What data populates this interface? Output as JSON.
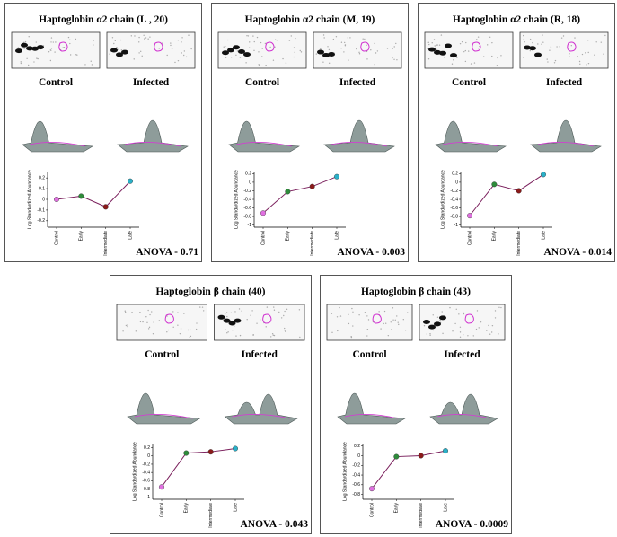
{
  "chart_data": [
    {
      "type": "line",
      "title": "Haptoglobin α2  chain (L , 20)",
      "image_labels": [
        "Control",
        "Infected"
      ],
      "ylabel": "Log Standardized Abundance",
      "categories": [
        "Control",
        "Early",
        "Intermediate",
        "Late"
      ],
      "values": [
        0.0,
        0.03,
        -0.07,
        0.17
      ],
      "color": "#7a1f5c",
      "marker_colors": [
        "#e070e0",
        "#2e8b3a",
        "#8b1a1a",
        "#2ab0c8"
      ],
      "ylim": [
        -0.26,
        0.26
      ],
      "yticks": [
        -0.2,
        -0.1,
        0,
        0.1,
        0.2
      ],
      "annotation": "ANOVA - 0.71"
    },
    {
      "type": "line",
      "title": "Haptoglobin α2  chain (M, 19)",
      "image_labels": [
        "Control",
        "Infected"
      ],
      "ylabel": "Log Standardized Abundance",
      "categories": [
        "Control",
        "Early",
        "Intermediate",
        "Late"
      ],
      "values": [
        -0.72,
        -0.22,
        -0.1,
        0.13
      ],
      "color": "#7a1f5c",
      "marker_colors": [
        "#e070e0",
        "#2e8b3a",
        "#8b1a1a",
        "#2ab0c8"
      ],
      "ylim": [
        -1.05,
        0.25
      ],
      "yticks": [
        -1,
        -0.8,
        -0.6,
        -0.4,
        -0.2,
        0,
        0.2
      ],
      "annotation": "ANOVA - 0.003"
    },
    {
      "type": "line",
      "title": "Haptoglobin α2  chain (R, 18)",
      "image_labels": [
        "Control",
        "Infected"
      ],
      "ylabel": "Log Standardized Abundance",
      "categories": [
        "Control",
        "Early",
        "Intermediate",
        "Late"
      ],
      "values": [
        -0.78,
        -0.05,
        -0.2,
        0.18
      ],
      "color": "#7a1f5c",
      "marker_colors": [
        "#e070e0",
        "#2e8b3a",
        "#8b1a1a",
        "#2ab0c8"
      ],
      "ylim": [
        -1.05,
        0.25
      ],
      "yticks": [
        -1,
        -0.8,
        -0.6,
        -0.4,
        -0.2,
        0,
        0.2
      ],
      "annotation": "ANOVA - 0.014"
    },
    {
      "type": "line",
      "title": "Haptoglobin β chain (40)",
      "image_labels": [
        "Control",
        "Infected"
      ],
      "ylabel": "Log Standardized Abundance",
      "categories": [
        "Control",
        "Early",
        "Intermediate",
        "Late"
      ],
      "values": [
        -0.75,
        0.07,
        0.1,
        0.18
      ],
      "color": "#7a1f5c",
      "marker_colors": [
        "#e070e0",
        "#2e8b3a",
        "#8b1a1a",
        "#2ab0c8"
      ],
      "ylim": [
        -1.05,
        0.3
      ],
      "yticks": [
        -1,
        -0.8,
        -0.6,
        -0.4,
        -0.2,
        0,
        0.2
      ],
      "annotation": "ANOVA - 0.043"
    },
    {
      "type": "line",
      "title": "Haptoglobin β chain (43)",
      "image_labels": [
        "Control",
        "Infected"
      ],
      "ylabel": "Log Standardized Abundance",
      "categories": [
        "Control",
        "Early",
        "Intermediate",
        "Late"
      ],
      "values": [
        -0.68,
        -0.02,
        0.0,
        0.1
      ],
      "color": "#7a1f5c",
      "marker_colors": [
        "#e070e0",
        "#2e8b3a",
        "#8b1a1a",
        "#2ab0c8"
      ],
      "ylim": [
        -0.9,
        0.25
      ],
      "yticks": [
        -0.8,
        -0.6,
        -0.4,
        -0.2,
        0,
        0.2
      ],
      "annotation": "ANOVA - 0.0009"
    }
  ]
}
